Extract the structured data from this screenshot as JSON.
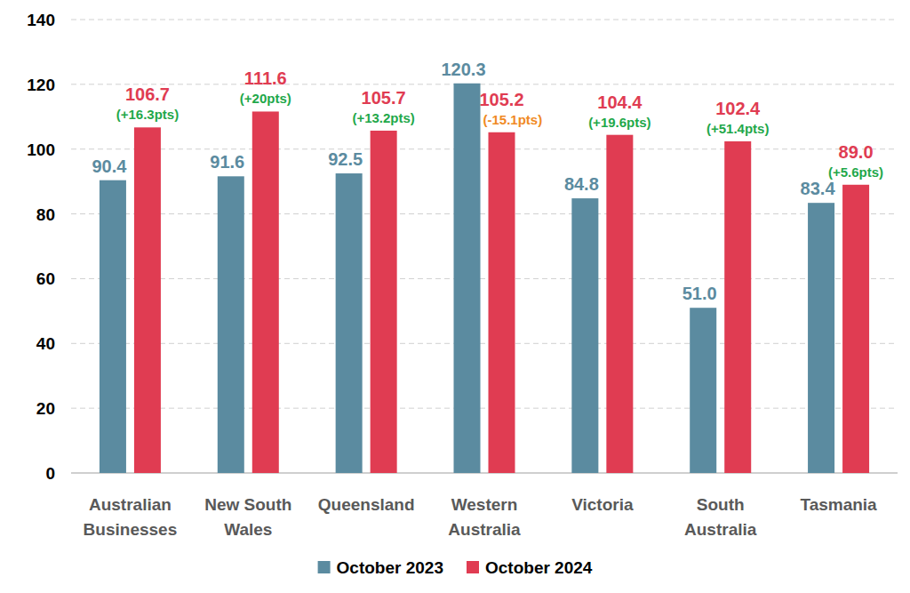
{
  "chart_data": {
    "type": "bar",
    "categories": [
      "Australian Businesses",
      "New South Wales",
      "Queensland",
      "Western Australia",
      "Victoria",
      "South Australia",
      "Tasmania"
    ],
    "series": [
      {
        "name": "October 2023",
        "color": "#5B8BA0",
        "values": [
          90.4,
          91.6,
          92.5,
          120.3,
          84.8,
          51.0,
          83.4
        ],
        "value_labels": [
          "90.4",
          "91.6",
          "92.5",
          "120.3",
          "84.8",
          "51.0",
          "83.4"
        ]
      },
      {
        "name": "October 2024",
        "color": "#E03C52",
        "values": [
          106.7,
          111.6,
          105.7,
          105.2,
          104.4,
          102.4,
          89.0
        ],
        "value_labels": [
          "106.7",
          "111.6",
          "105.7",
          "105.2",
          "104.4",
          "102.4",
          "89.0"
        ]
      }
    ],
    "annotations": [
      "(+16.3pts)",
      "(+20pts)",
      "(+13.2pts)",
      "(-15.1pts)",
      "(+19.6pts)",
      "(+51.4pts)",
      "(+5.6pts)"
    ],
    "ylim": [
      0,
      140
    ],
    "yticks": [
      0,
      20,
      40,
      60,
      80,
      100,
      120,
      140
    ],
    "grid": true,
    "data_labels": true,
    "legend": "bottom"
  }
}
